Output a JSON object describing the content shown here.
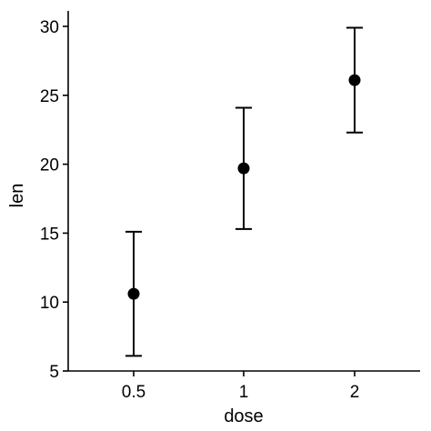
{
  "chart_data": {
    "type": "scatter",
    "title": "",
    "xlabel": "dose",
    "ylabel": "len",
    "categories": [
      "0.5",
      "1",
      "2"
    ],
    "series": [
      {
        "values": [
          10.6,
          19.7,
          26.1
        ],
        "error_low": [
          6.1,
          15.3,
          22.3
        ],
        "error_high": [
          15.1,
          24.1,
          29.9
        ]
      }
    ],
    "ylim": [
      5,
      30
    ],
    "yticks": [
      5,
      10,
      15,
      20,
      25,
      30
    ],
    "grid": false,
    "legend": "none"
  }
}
